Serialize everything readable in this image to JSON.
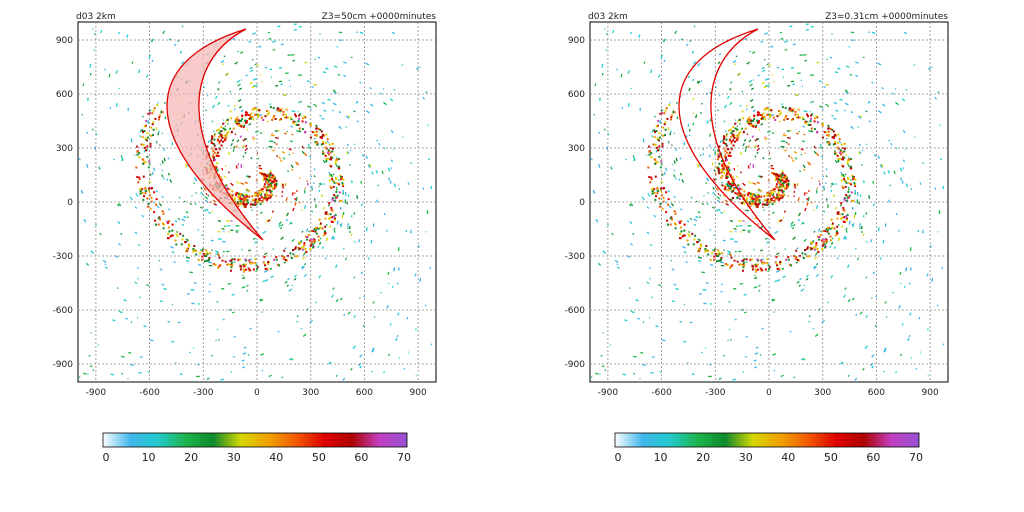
{
  "panels": [
    {
      "corner_left": "d03 2km",
      "corner_right": "Z3=50cm +0000minutes",
      "shaded_cone": true,
      "colorbar_labels": [
        "0",
        "10",
        "20",
        "30",
        "40",
        "50",
        "60",
        "70"
      ]
    },
    {
      "corner_left": "d03 2km",
      "corner_right": "Z3=0.31cm +0000minutes",
      "shaded_cone": false,
      "colorbar_labels": [
        "0",
        "10",
        "20",
        "30",
        "40",
        "50",
        "60",
        "70"
      ]
    }
  ],
  "chart_data": {
    "type": "heatmap",
    "x_ticks": [
      "-900",
      "-600",
      "-300",
      "0",
      "300",
      "600",
      "900"
    ],
    "y_ticks": [
      "900",
      "600",
      "300",
      "0",
      "-300",
      "-600",
      "-900"
    ],
    "xlim": [
      -1000,
      1000
    ],
    "ylim": [
      -1000,
      1000
    ],
    "grid": true,
    "colorbar": {
      "min": 0,
      "max": 70,
      "ticks": [
        0,
        10,
        20,
        30,
        40,
        50,
        60,
        70
      ],
      "colors": [
        "#ffffff",
        "#3fb6ea",
        "#22cccc",
        "#1db54a",
        "#0f8a2a",
        "#d7d700",
        "#f0a000",
        "#f05a00",
        "#e00000",
        "#b00000",
        "#c040c0",
        "#9a50d0"
      ]
    },
    "cone_outline_color": "#e00000",
    "cone_fill_color": "#f6b8b8"
  }
}
